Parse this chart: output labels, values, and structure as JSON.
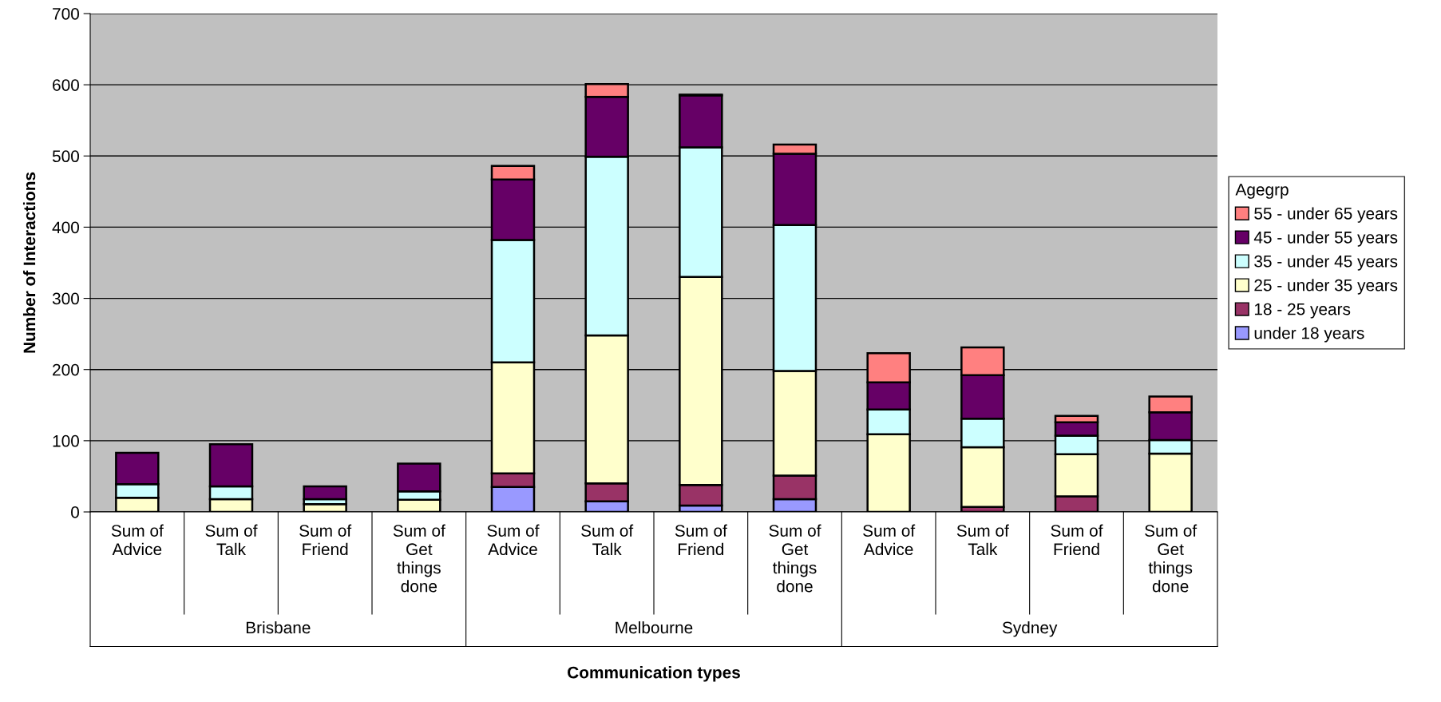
{
  "chart_data": {
    "type": "bar",
    "stacked": true,
    "xlabel": "Communication types",
    "ylabel": "Number of Interactions",
    "legend_title": "Agegrp",
    "legend": "right",
    "categories": [
      "Sum of Advice",
      "Sum of Talk",
      "Sum of Friend",
      "Sum of Get things done",
      "Sum of Advice",
      "Sum of Talk",
      "Sum of Friend",
      "Sum of Get things done",
      "Sum of Advice",
      "Sum of Talk",
      "Sum of Friend",
      "Sum of Get things done"
    ],
    "annotations": [
      "Brisbane",
      "Melbourne",
      "Sydney"
    ],
    "series": [
      {
        "name": "under 18 years",
        "color": "#9999ff",
        "values": [
          0,
          0,
          0,
          0,
          35,
          15,
          9,
          18,
          0,
          0,
          0,
          0
        ]
      },
      {
        "name": "18 - 25 years",
        "color": "#993366",
        "values": [
          0,
          0,
          0,
          0,
          19,
          25,
          29,
          33,
          null,
          7,
          22,
          null
        ]
      },
      {
        "name": "25 - under 35 years",
        "color": "#ffffcc",
        "values": [
          20,
          18,
          11,
          17,
          156,
          208,
          292,
          147,
          109,
          84,
          59,
          82
        ]
      },
      {
        "name": "35 - under 45 years",
        "color": "#ccffff",
        "values": [
          19,
          18,
          7,
          12,
          172,
          251,
          182,
          205,
          35,
          40,
          26,
          19
        ]
      },
      {
        "name": "45 - under 55 years",
        "color": "#660066",
        "values": [
          44,
          59,
          18,
          39,
          85,
          84,
          73,
          100,
          38,
          61,
          19,
          39
        ]
      },
      {
        "name": "55 - under 65 years",
        "color": "#ff8080",
        "values": [
          0,
          0,
          0,
          0,
          19,
          18,
          1,
          13,
          41,
          39,
          9,
          22
        ]
      }
    ],
    "ylim": [
      0,
      700
    ],
    "yticks": [
      0,
      100,
      200,
      300,
      400,
      500,
      600,
      700
    ],
    "grid": "y"
  }
}
